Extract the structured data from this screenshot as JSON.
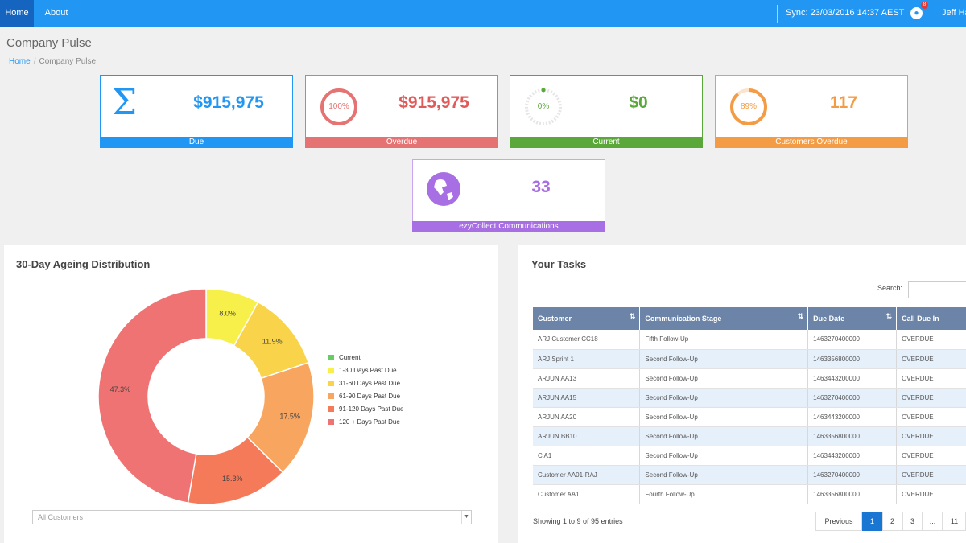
{
  "nav": {
    "home": "Home",
    "about": "About",
    "sync": "Sync: 23/03/2016 14:37 AEST",
    "notification_count": "8",
    "user": "Jeff Ha"
  },
  "page": {
    "title": "Company Pulse",
    "breadcrumb_home": "Home",
    "breadcrumb_sep": "/",
    "breadcrumb_current": "Company Pulse"
  },
  "cards": {
    "due": {
      "value": "$915,975",
      "label": "Due",
      "color": "#2196f3"
    },
    "overdue": {
      "value": "$915,975",
      "label": "Overdue",
      "ring_text": "100%",
      "percent": 100,
      "color": "#e57373"
    },
    "current": {
      "value": "$0",
      "label": "Current",
      "ring_text": "0%",
      "percent": 0,
      "color": "#5aa83a"
    },
    "customers_overdue": {
      "value": "117",
      "label": "Customers Overdue",
      "ring_text": "89%",
      "percent": 89,
      "color": "#f39c45"
    },
    "communications": {
      "value": "33",
      "label": "ezyCollect Communications",
      "color": "#a86ee3"
    }
  },
  "ageing": {
    "title": "30-Day Ageing Distribution",
    "filter_value": "All Customers"
  },
  "chart_data": {
    "type": "pie",
    "categories": [
      "Current",
      "1-30 Days Past Due",
      "31-60 Days Past Due",
      "61-90 Days Past Due",
      "91-120 Days Past Due",
      "120 + Days Past Due"
    ],
    "values": [
      0,
      8.0,
      11.9,
      17.5,
      15.3,
      47.3
    ],
    "data_labels": [
      "",
      "8.0%",
      "11.9%",
      "17.5%",
      "15.3%",
      "47.3%"
    ],
    "colors": [
      "#66cc66",
      "#f7f04a",
      "#f9d44a",
      "#f8a560",
      "#f47a5a",
      "#ef7373"
    ],
    "donut": true,
    "legend_position": "right"
  },
  "tasks": {
    "title": "Your Tasks",
    "search_label": "Search:",
    "columns": [
      "Customer",
      "Communication Stage",
      "Due Date",
      "Call Due In"
    ],
    "rows": [
      [
        "ARJ Customer CC18",
        "Fifth Follow-Up",
        "1463270400000",
        "OVERDUE"
      ],
      [
        "ARJ Sprint 1",
        "Second Follow-Up",
        "1463356800000",
        "OVERDUE"
      ],
      [
        "ARJUN AA13",
        "Second Follow-Up",
        "1463443200000",
        "OVERDUE"
      ],
      [
        "ARJUN AA15",
        "Second Follow-Up",
        "1463270400000",
        "OVERDUE"
      ],
      [
        "ARJUN AA20",
        "Second Follow-Up",
        "1463443200000",
        "OVERDUE"
      ],
      [
        "ARJUN BB10",
        "Second Follow-Up",
        "1463356800000",
        "OVERDUE"
      ],
      [
        "C A1",
        "Second Follow-Up",
        "1463443200000",
        "OVERDUE"
      ],
      [
        "Customer AA01-RAJ",
        "Second Follow-Up",
        "1463270400000",
        "OVERDUE"
      ],
      [
        "Customer AA1",
        "Fourth Follow-Up",
        "1463356800000",
        "OVERDUE"
      ]
    ],
    "showing": "Showing 1 to 9 of 95 entries",
    "pagination": [
      "Previous",
      "1",
      "2",
      "3",
      "...",
      "11"
    ],
    "active_page": "1"
  }
}
